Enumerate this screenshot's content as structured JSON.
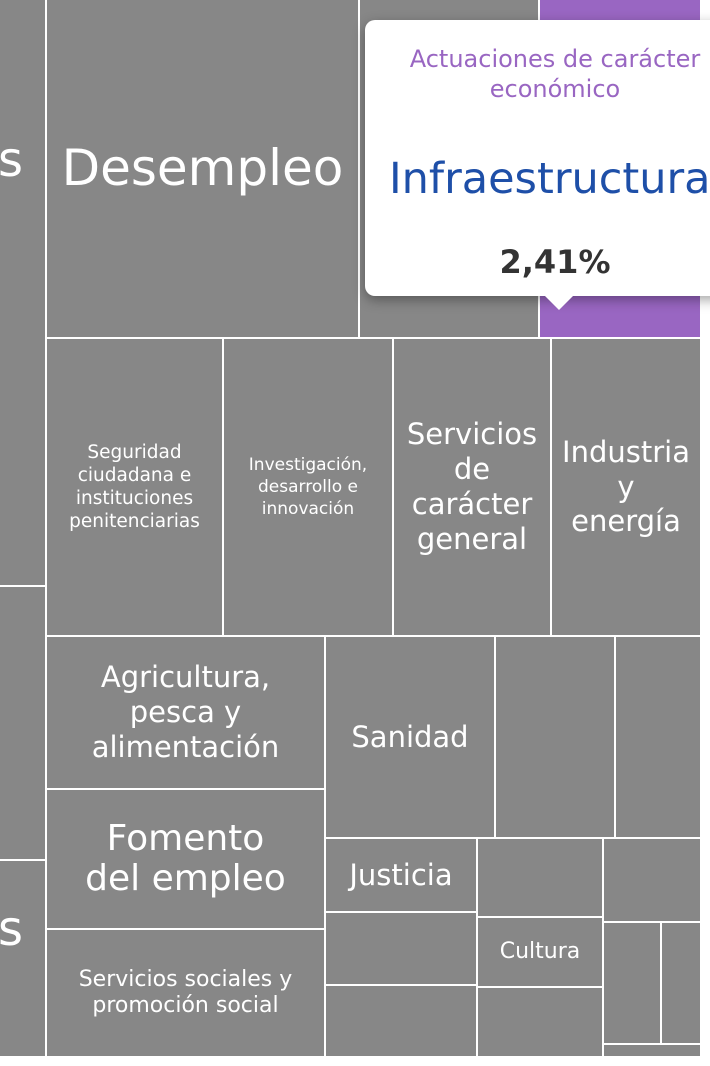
{
  "colors": {
    "tile": "#878787",
    "highlight": "#9966c2",
    "tooltip_category": "#9966c2",
    "tooltip_name": "#1e4fa8",
    "tooltip_value": "#333333"
  },
  "treemap": {
    "edge_letter_top": "s",
    "edge_letter_bottom": "s",
    "tiles": {
      "desempleo": "Desempleo",
      "seguridad": "Seguridad\nciudadana e\ninstituciones\npenitenciarias",
      "investigacion": "Investigación,\ndesarrollo e\ninnovación",
      "servicios_generales": "Servicios\nde\ncarácter\ngeneral",
      "industria": "Industria\ny\nenergía",
      "agricultura": "Agricultura,\npesca y\nalimentación",
      "sanidad": "Sanidad",
      "fomento": "Fomento\ndel empleo",
      "servicios_sociales": "Servicios sociales y\npromoción social",
      "justicia": "Justicia",
      "cultura": "Cultura"
    }
  },
  "tooltip": {
    "category": "Actuaciones de carácter\neconómico",
    "name": "Infraestructuras",
    "value": "2,41%"
  }
}
